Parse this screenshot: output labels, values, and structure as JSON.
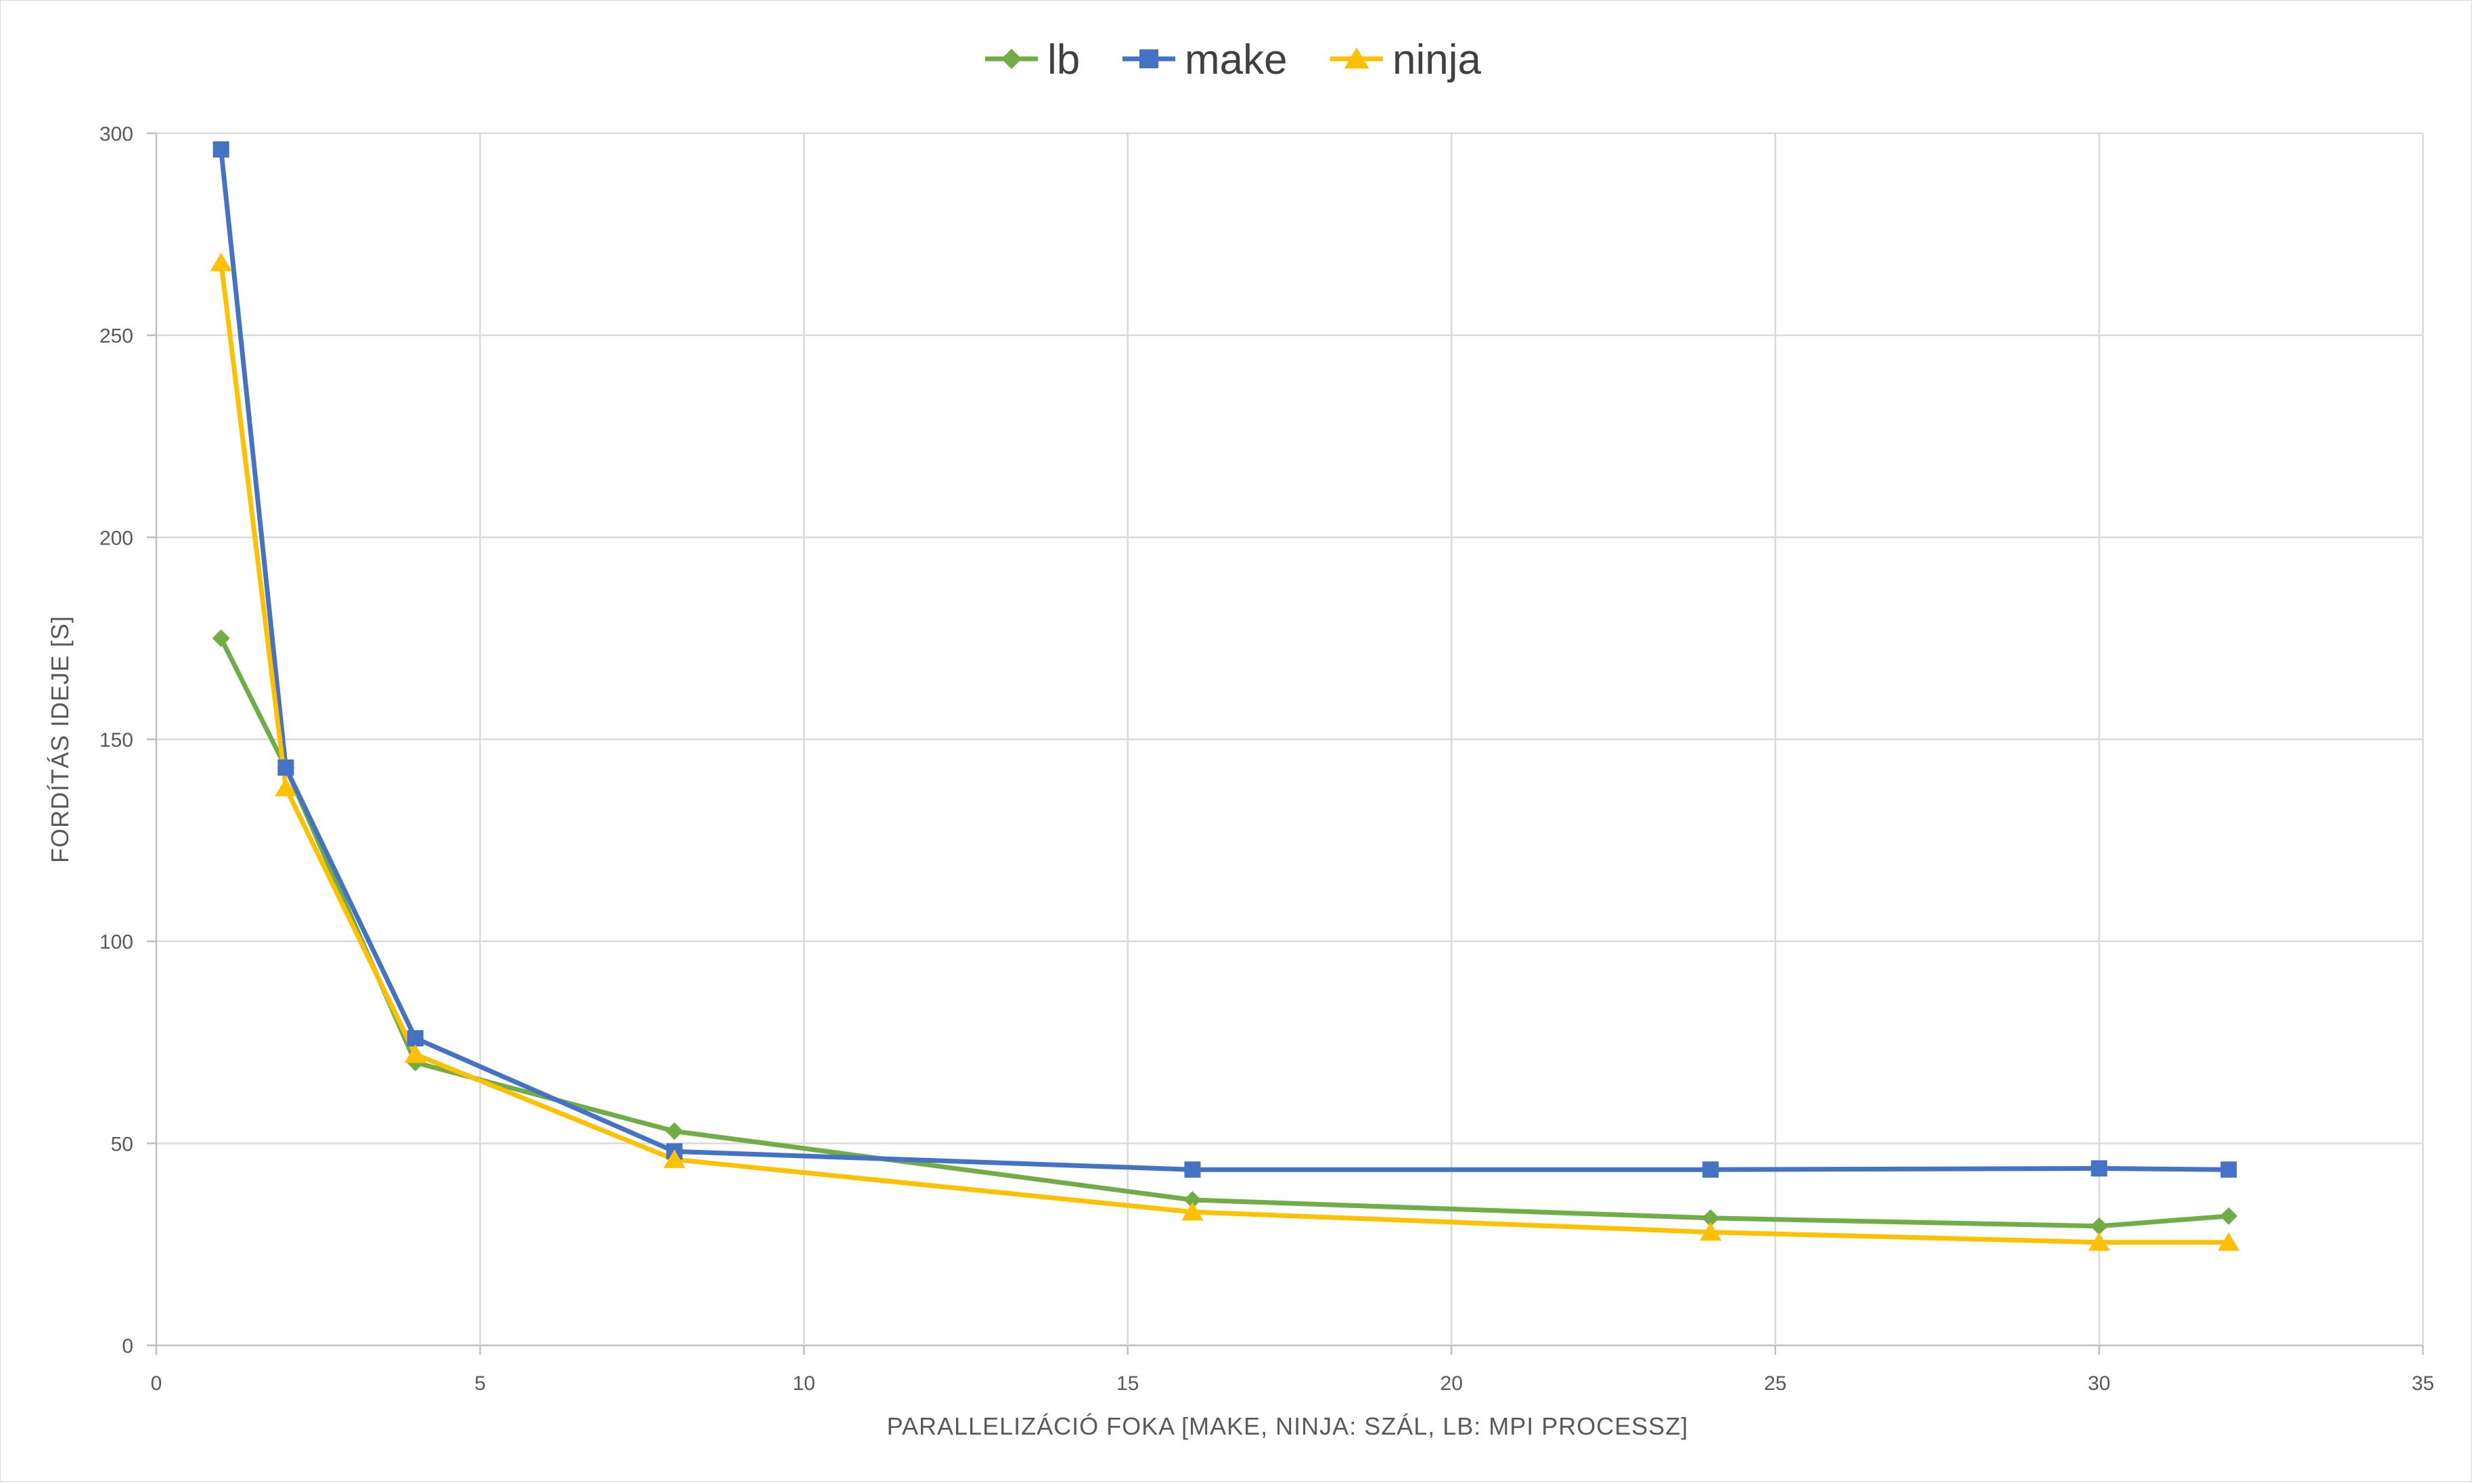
{
  "chart_data": {
    "type": "line",
    "title": "",
    "xlabel": "PARALLELIZÁCIÓ FOKA [MAKE, NINJA: SZÁL, LB: MPI PROCESSZ]",
    "ylabel": "FORDÍTÁS IDEJE [S]",
    "xlim": [
      0,
      35
    ],
    "ylim": [
      0,
      300
    ],
    "x_ticks": [
      0,
      5,
      10,
      15,
      20,
      25,
      30,
      35
    ],
    "y_ticks": [
      0,
      50,
      100,
      150,
      200,
      250,
      300
    ],
    "grid": true,
    "legend_position": "top-center",
    "series": [
      {
        "name": "lb",
        "color": "#70ad47",
        "marker": "diamond",
        "points": [
          [
            1,
            175
          ],
          [
            2,
            143
          ],
          [
            4,
            70
          ],
          [
            8,
            53
          ],
          [
            16,
            36
          ],
          [
            24,
            31.5
          ],
          [
            30,
            29.5
          ],
          [
            32,
            32
          ]
        ]
      },
      {
        "name": "make",
        "color": "#4472c4",
        "marker": "square",
        "points": [
          [
            1,
            296
          ],
          [
            2,
            143
          ],
          [
            4,
            76
          ],
          [
            8,
            48
          ],
          [
            16,
            43.5
          ],
          [
            24,
            43.5
          ],
          [
            30,
            43.8
          ],
          [
            32,
            43.5
          ]
        ]
      },
      {
        "name": "ninja",
        "color": "#ffc000",
        "marker": "triangle",
        "points": [
          [
            1,
            268
          ],
          [
            2,
            138
          ],
          [
            4,
            72
          ],
          [
            8,
            46
          ],
          [
            16,
            33
          ],
          [
            24,
            28
          ],
          [
            30,
            25.5
          ],
          [
            32,
            25.5
          ]
        ]
      }
    ]
  }
}
